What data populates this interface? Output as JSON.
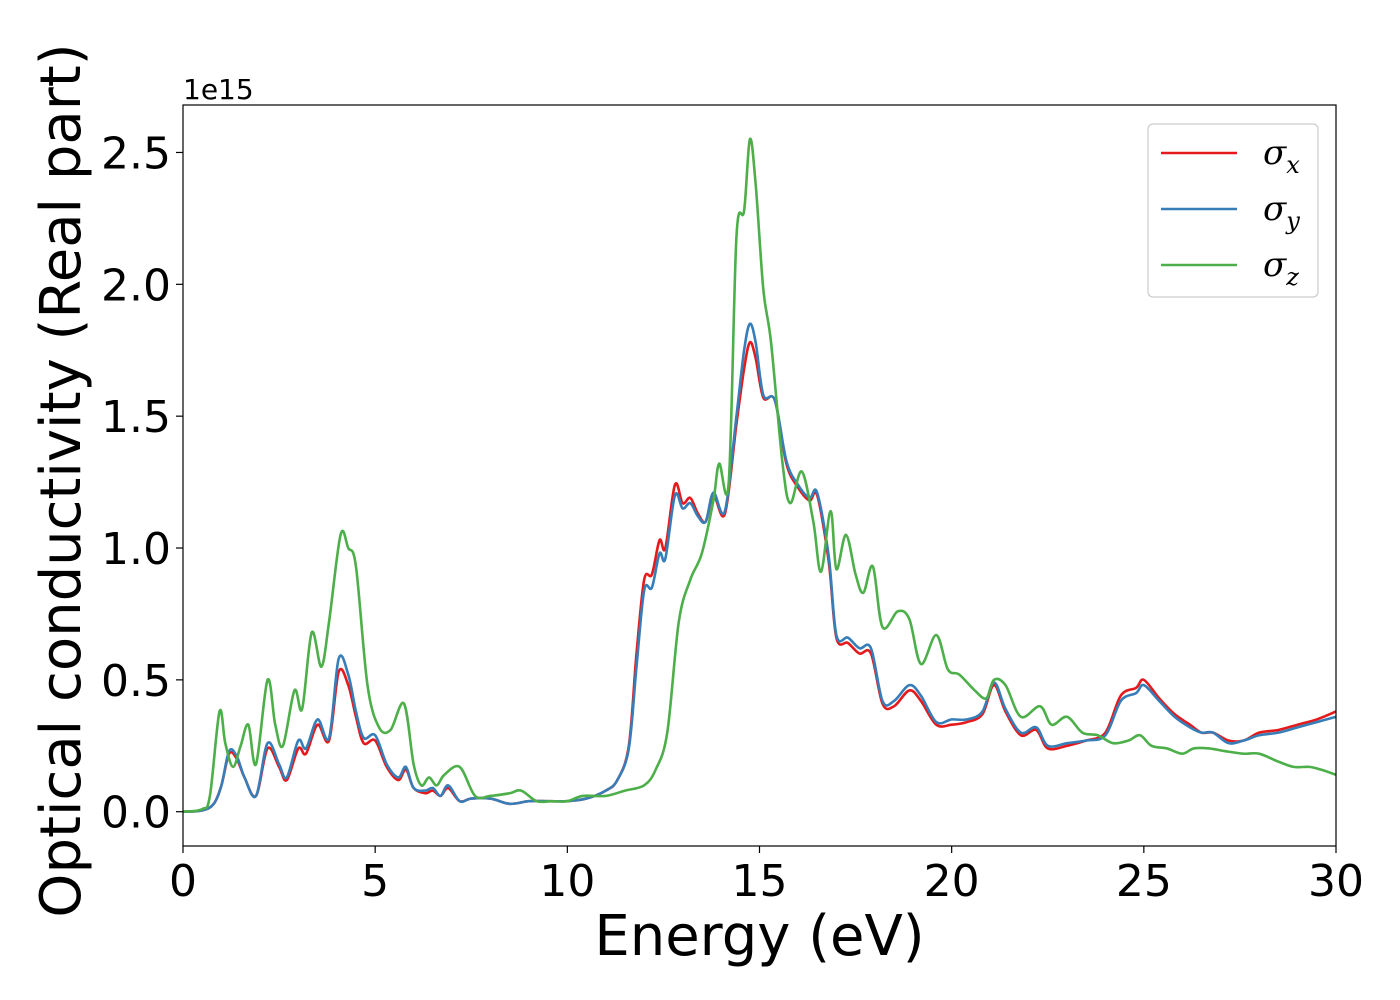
{
  "chart_data": {
    "type": "line",
    "title": "",
    "xlabel": "Energy (eV)",
    "ylabel": "Optical conductivity (Real part)",
    "y_offset_label": "1e15",
    "y_scale": 1000000000000000.0,
    "xlim": [
      0,
      30
    ],
    "ylim": [
      -0.13,
      2.68
    ],
    "xticks": [
      0,
      5,
      10,
      15,
      20,
      25,
      30
    ],
    "xtick_labels": [
      "0",
      "5",
      "10",
      "15",
      "20",
      "25",
      "30"
    ],
    "yticks": [
      0.0,
      0.5,
      1.0,
      1.5,
      2.0,
      2.5
    ],
    "ytick_labels": [
      "0.0",
      "0.5",
      "1.0",
      "1.5",
      "2.0",
      "2.5"
    ],
    "grid": false,
    "legend_position": "top-right",
    "series": [
      {
        "name": "σx",
        "legend_base": "σ",
        "legend_sub": "x",
        "color": "#e41a1c",
        "points": [
          [
            0,
            0
          ],
          [
            0.5,
            0.005
          ],
          [
            0.8,
            0.03
          ],
          [
            1.0,
            0.1
          ],
          [
            1.2,
            0.22
          ],
          [
            1.4,
            0.2
          ],
          [
            1.6,
            0.13
          ],
          [
            1.9,
            0.06
          ],
          [
            2.2,
            0.24
          ],
          [
            2.5,
            0.17
          ],
          [
            2.7,
            0.12
          ],
          [
            3.0,
            0.24
          ],
          [
            3.2,
            0.22
          ],
          [
            3.5,
            0.33
          ],
          [
            3.8,
            0.27
          ],
          [
            4.05,
            0.53
          ],
          [
            4.3,
            0.48
          ],
          [
            4.5,
            0.36
          ],
          [
            4.7,
            0.26
          ],
          [
            5.0,
            0.27
          ],
          [
            5.3,
            0.17
          ],
          [
            5.6,
            0.12
          ],
          [
            5.8,
            0.16
          ],
          [
            6.0,
            0.09
          ],
          [
            6.3,
            0.07
          ],
          [
            6.5,
            0.08
          ],
          [
            6.7,
            0.06
          ],
          [
            6.9,
            0.09
          ],
          [
            7.2,
            0.04
          ],
          [
            7.5,
            0.05
          ],
          [
            8.0,
            0.05
          ],
          [
            8.5,
            0.03
          ],
          [
            9.0,
            0.04
          ],
          [
            9.5,
            0.04
          ],
          [
            10.0,
            0.04
          ],
          [
            10.5,
            0.05
          ],
          [
            11.0,
            0.08
          ],
          [
            11.3,
            0.12
          ],
          [
            11.6,
            0.25
          ],
          [
            11.8,
            0.6
          ],
          [
            12.0,
            0.88
          ],
          [
            12.2,
            0.9
          ],
          [
            12.4,
            1.03
          ],
          [
            12.55,
            1.0
          ],
          [
            12.8,
            1.24
          ],
          [
            13.0,
            1.17
          ],
          [
            13.2,
            1.19
          ],
          [
            13.4,
            1.13
          ],
          [
            13.6,
            1.1
          ],
          [
            13.8,
            1.2
          ],
          [
            14.1,
            1.13
          ],
          [
            14.4,
            1.47
          ],
          [
            14.6,
            1.68
          ],
          [
            14.75,
            1.78
          ],
          [
            14.9,
            1.72
          ],
          [
            15.1,
            1.57
          ],
          [
            15.4,
            1.56
          ],
          [
            15.7,
            1.32
          ],
          [
            16.0,
            1.23
          ],
          [
            16.3,
            1.18
          ],
          [
            16.5,
            1.2
          ],
          [
            16.8,
            0.95
          ],
          [
            17.0,
            0.66
          ],
          [
            17.3,
            0.64
          ],
          [
            17.6,
            0.6
          ],
          [
            17.9,
            0.6
          ],
          [
            18.2,
            0.41
          ],
          [
            18.5,
            0.4
          ],
          [
            18.9,
            0.46
          ],
          [
            19.2,
            0.42
          ],
          [
            19.6,
            0.33
          ],
          [
            20.0,
            0.33
          ],
          [
            20.4,
            0.34
          ],
          [
            20.8,
            0.37
          ],
          [
            21.1,
            0.48
          ],
          [
            21.4,
            0.38
          ],
          [
            21.8,
            0.29
          ],
          [
            22.2,
            0.31
          ],
          [
            22.5,
            0.24
          ],
          [
            23.0,
            0.25
          ],
          [
            23.5,
            0.27
          ],
          [
            24.0,
            0.3
          ],
          [
            24.4,
            0.44
          ],
          [
            24.8,
            0.47
          ],
          [
            25.0,
            0.5
          ],
          [
            25.4,
            0.43
          ],
          [
            25.8,
            0.37
          ],
          [
            26.2,
            0.33
          ],
          [
            26.5,
            0.3
          ],
          [
            26.8,
            0.3
          ],
          [
            27.2,
            0.27
          ],
          [
            27.6,
            0.27
          ],
          [
            28.0,
            0.3
          ],
          [
            28.5,
            0.31
          ],
          [
            29.0,
            0.33
          ],
          [
            29.5,
            0.35
          ],
          [
            30.0,
            0.38
          ]
        ]
      },
      {
        "name": "σy",
        "legend_base": "σ",
        "legend_sub": "y",
        "color": "#377eb8",
        "points": [
          [
            0,
            0
          ],
          [
            0.5,
            0.005
          ],
          [
            0.8,
            0.03
          ],
          [
            1.0,
            0.1
          ],
          [
            1.2,
            0.23
          ],
          [
            1.4,
            0.21
          ],
          [
            1.6,
            0.13
          ],
          [
            1.9,
            0.06
          ],
          [
            2.2,
            0.26
          ],
          [
            2.5,
            0.18
          ],
          [
            2.7,
            0.13
          ],
          [
            3.0,
            0.27
          ],
          [
            3.2,
            0.24
          ],
          [
            3.5,
            0.35
          ],
          [
            3.8,
            0.28
          ],
          [
            4.05,
            0.58
          ],
          [
            4.3,
            0.52
          ],
          [
            4.5,
            0.38
          ],
          [
            4.7,
            0.28
          ],
          [
            5.0,
            0.29
          ],
          [
            5.3,
            0.18
          ],
          [
            5.6,
            0.13
          ],
          [
            5.8,
            0.17
          ],
          [
            6.0,
            0.09
          ],
          [
            6.3,
            0.08
          ],
          [
            6.5,
            0.09
          ],
          [
            6.7,
            0.06
          ],
          [
            6.9,
            0.1
          ],
          [
            7.2,
            0.04
          ],
          [
            7.5,
            0.05
          ],
          [
            8.0,
            0.05
          ],
          [
            8.5,
            0.03
          ],
          [
            9.0,
            0.04
          ],
          [
            9.5,
            0.04
          ],
          [
            10.0,
            0.04
          ],
          [
            10.5,
            0.05
          ],
          [
            11.0,
            0.08
          ],
          [
            11.3,
            0.12
          ],
          [
            11.6,
            0.24
          ],
          [
            11.8,
            0.55
          ],
          [
            12.0,
            0.84
          ],
          [
            12.2,
            0.85
          ],
          [
            12.4,
            0.98
          ],
          [
            12.55,
            0.96
          ],
          [
            12.8,
            1.2
          ],
          [
            13.0,
            1.15
          ],
          [
            13.2,
            1.17
          ],
          [
            13.4,
            1.12
          ],
          [
            13.6,
            1.1
          ],
          [
            13.8,
            1.21
          ],
          [
            14.1,
            1.14
          ],
          [
            14.4,
            1.5
          ],
          [
            14.6,
            1.75
          ],
          [
            14.75,
            1.85
          ],
          [
            14.9,
            1.78
          ],
          [
            15.1,
            1.58
          ],
          [
            15.4,
            1.56
          ],
          [
            15.7,
            1.33
          ],
          [
            16.0,
            1.24
          ],
          [
            16.3,
            1.19
          ],
          [
            16.5,
            1.21
          ],
          [
            16.8,
            0.97
          ],
          [
            17.0,
            0.67
          ],
          [
            17.3,
            0.66
          ],
          [
            17.6,
            0.62
          ],
          [
            17.9,
            0.62
          ],
          [
            18.2,
            0.42
          ],
          [
            18.5,
            0.42
          ],
          [
            18.9,
            0.48
          ],
          [
            19.2,
            0.44
          ],
          [
            19.6,
            0.34
          ],
          [
            20.0,
            0.35
          ],
          [
            20.4,
            0.35
          ],
          [
            20.8,
            0.38
          ],
          [
            21.1,
            0.49
          ],
          [
            21.4,
            0.39
          ],
          [
            21.8,
            0.3
          ],
          [
            22.2,
            0.32
          ],
          [
            22.5,
            0.25
          ],
          [
            23.0,
            0.26
          ],
          [
            23.5,
            0.27
          ],
          [
            24.0,
            0.29
          ],
          [
            24.4,
            0.42
          ],
          [
            24.8,
            0.45
          ],
          [
            25.0,
            0.48
          ],
          [
            25.4,
            0.42
          ],
          [
            25.8,
            0.36
          ],
          [
            26.2,
            0.32
          ],
          [
            26.5,
            0.3
          ],
          [
            26.8,
            0.3
          ],
          [
            27.2,
            0.26
          ],
          [
            27.6,
            0.27
          ],
          [
            28.0,
            0.29
          ],
          [
            28.5,
            0.3
          ],
          [
            29.0,
            0.32
          ],
          [
            29.5,
            0.34
          ],
          [
            30.0,
            0.36
          ]
        ]
      },
      {
        "name": "σz",
        "legend_base": "σ",
        "legend_sub": "z",
        "color": "#4daf4a",
        "points": [
          [
            0,
            0
          ],
          [
            0.5,
            0.01
          ],
          [
            0.7,
            0.06
          ],
          [
            0.95,
            0.38
          ],
          [
            1.1,
            0.26
          ],
          [
            1.3,
            0.17
          ],
          [
            1.5,
            0.25
          ],
          [
            1.7,
            0.33
          ],
          [
            1.9,
            0.18
          ],
          [
            2.2,
            0.5
          ],
          [
            2.4,
            0.33
          ],
          [
            2.6,
            0.25
          ],
          [
            2.9,
            0.46
          ],
          [
            3.1,
            0.39
          ],
          [
            3.35,
            0.68
          ],
          [
            3.6,
            0.55
          ],
          [
            3.8,
            0.72
          ],
          [
            4.1,
            1.05
          ],
          [
            4.3,
            1.0
          ],
          [
            4.5,
            0.93
          ],
          [
            4.8,
            0.48
          ],
          [
            5.1,
            0.32
          ],
          [
            5.4,
            0.31
          ],
          [
            5.75,
            0.41
          ],
          [
            6.0,
            0.18
          ],
          [
            6.2,
            0.1
          ],
          [
            6.4,
            0.13
          ],
          [
            6.6,
            0.1
          ],
          [
            6.8,
            0.14
          ],
          [
            7.2,
            0.17
          ],
          [
            7.6,
            0.06
          ],
          [
            8.0,
            0.06
          ],
          [
            8.5,
            0.07
          ],
          [
            8.8,
            0.08
          ],
          [
            9.2,
            0.04
          ],
          [
            9.6,
            0.04
          ],
          [
            10.0,
            0.04
          ],
          [
            10.4,
            0.06
          ],
          [
            11.0,
            0.06
          ],
          [
            11.5,
            0.08
          ],
          [
            12.0,
            0.1
          ],
          [
            12.3,
            0.16
          ],
          [
            12.6,
            0.3
          ],
          [
            12.9,
            0.72
          ],
          [
            13.2,
            0.88
          ],
          [
            13.5,
            0.98
          ],
          [
            13.8,
            1.18
          ],
          [
            13.95,
            1.32
          ],
          [
            14.2,
            1.25
          ],
          [
            14.4,
            2.18
          ],
          [
            14.6,
            2.28
          ],
          [
            14.75,
            2.55
          ],
          [
            14.9,
            2.38
          ],
          [
            15.1,
            1.98
          ],
          [
            15.3,
            1.78
          ],
          [
            15.6,
            1.32
          ],
          [
            15.8,
            1.17
          ],
          [
            16.1,
            1.29
          ],
          [
            16.4,
            1.1
          ],
          [
            16.6,
            0.91
          ],
          [
            16.85,
            1.14
          ],
          [
            17.0,
            0.92
          ],
          [
            17.25,
            1.05
          ],
          [
            17.5,
            0.9
          ],
          [
            17.7,
            0.83
          ],
          [
            17.95,
            0.93
          ],
          [
            18.2,
            0.7
          ],
          [
            18.6,
            0.76
          ],
          [
            18.9,
            0.73
          ],
          [
            19.2,
            0.56
          ],
          [
            19.6,
            0.67
          ],
          [
            19.9,
            0.54
          ],
          [
            20.2,
            0.52
          ],
          [
            20.6,
            0.46
          ],
          [
            20.9,
            0.43
          ],
          [
            21.1,
            0.5
          ],
          [
            21.4,
            0.48
          ],
          [
            21.8,
            0.36
          ],
          [
            22.3,
            0.4
          ],
          [
            22.6,
            0.33
          ],
          [
            23.0,
            0.36
          ],
          [
            23.4,
            0.3
          ],
          [
            23.8,
            0.29
          ],
          [
            24.2,
            0.26
          ],
          [
            24.6,
            0.27
          ],
          [
            24.9,
            0.29
          ],
          [
            25.2,
            0.25
          ],
          [
            25.6,
            0.24
          ],
          [
            26.0,
            0.22
          ],
          [
            26.3,
            0.24
          ],
          [
            26.7,
            0.24
          ],
          [
            27.1,
            0.23
          ],
          [
            27.6,
            0.22
          ],
          [
            28.0,
            0.22
          ],
          [
            28.5,
            0.19
          ],
          [
            28.9,
            0.17
          ],
          [
            29.3,
            0.17
          ],
          [
            29.6,
            0.16
          ],
          [
            30.0,
            0.14
          ]
        ]
      }
    ]
  }
}
